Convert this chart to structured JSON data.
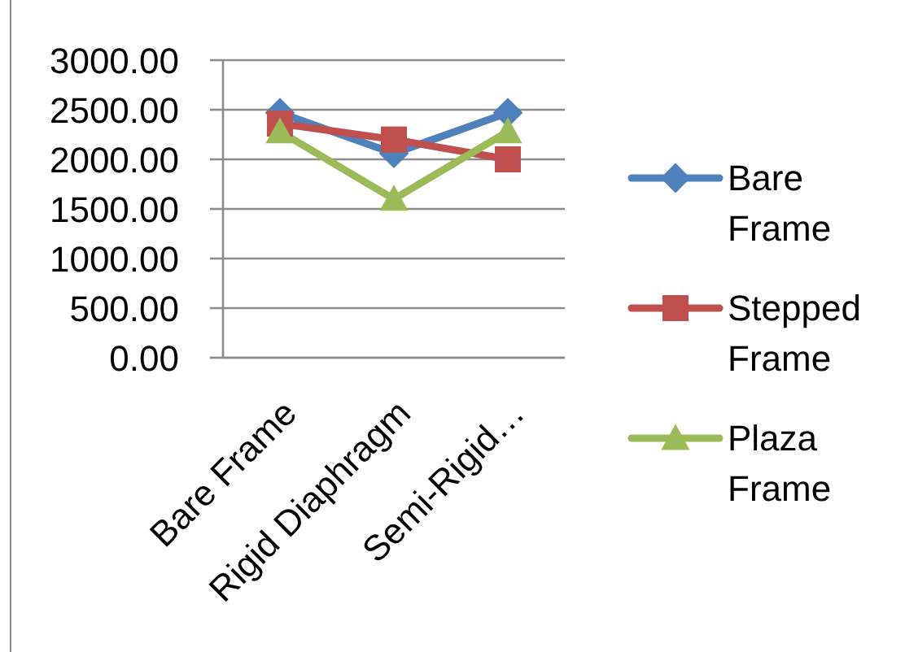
{
  "chart_data": {
    "type": "line",
    "categories": [
      "Bare Frame",
      "Rigid Diaphragm",
      "Semi-Rigid…"
    ],
    "series": [
      {
        "name": "Bare Frame",
        "color": "#4f81bd",
        "marker": "diamond",
        "values": [
          2470,
          2060,
          2470
        ]
      },
      {
        "name": "Stepped Frame",
        "color": "#c0504d",
        "marker": "square",
        "values": [
          2360,
          2200,
          2000
        ]
      },
      {
        "name": "Plaza Frame",
        "color": "#9bbb59",
        "marker": "triangle",
        "values": [
          2280,
          1600,
          2280
        ]
      }
    ],
    "ylim": [
      0,
      3000
    ],
    "yticks": [
      {
        "value": 0,
        "label": "0.00"
      },
      {
        "value": 500,
        "label": "500.00"
      },
      {
        "value": 1000,
        "label": "1000.00"
      },
      {
        "value": 1500,
        "label": "1500.00"
      },
      {
        "value": 2000,
        "label": "2000.00"
      },
      {
        "value": 2500,
        "label": "2500.00"
      },
      {
        "value": 3000,
        "label": "3000.00"
      }
    ],
    "grid": "y",
    "legend": "right"
  }
}
